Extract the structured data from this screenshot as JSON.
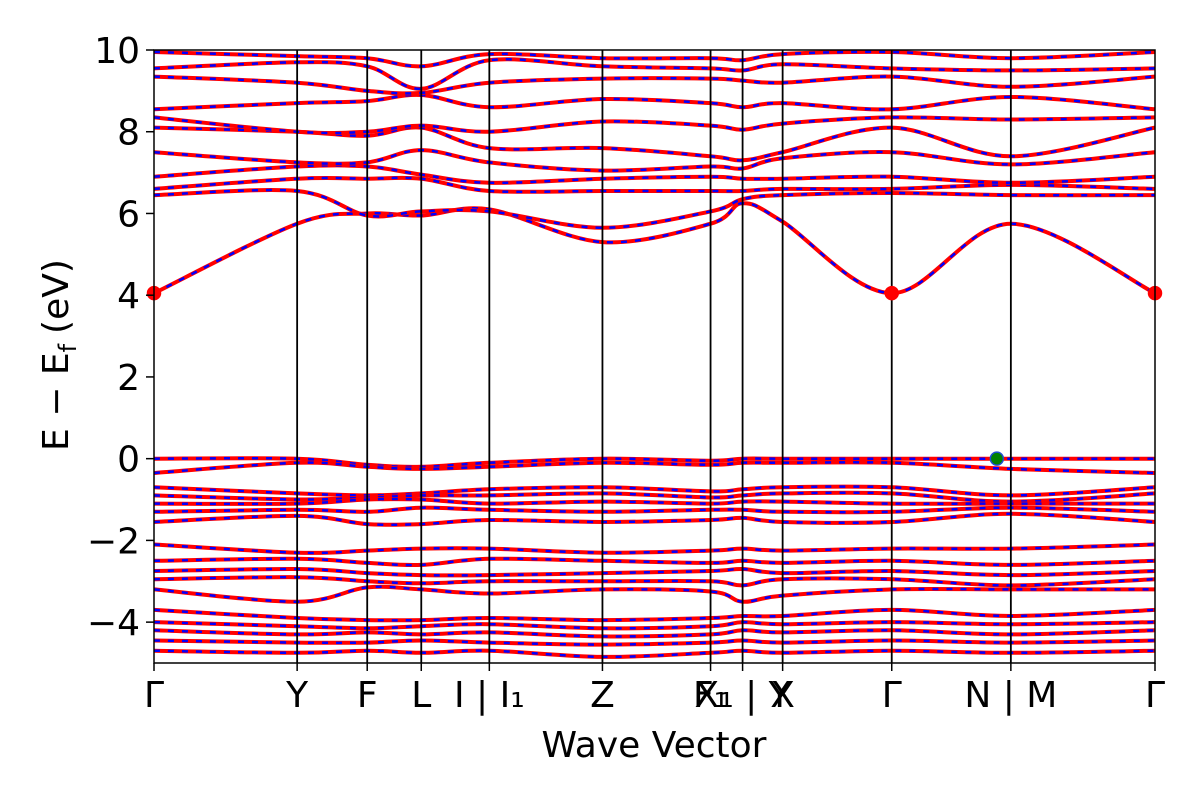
{
  "chart_data": {
    "type": "line",
    "title": "",
    "xlabel": "Wave Vector",
    "ylabel": "E − E",
    "ylabel_subscript": "f",
    "ylabel_unit": "(eV)",
    "ylim": [
      -5,
      10
    ],
    "yticks": [
      -4,
      -2,
      0,
      2,
      4,
      6,
      8,
      10
    ],
    "ytick_labels": [
      "−4",
      "−2",
      "0",
      "2",
      "4",
      "6",
      "8",
      "10"
    ],
    "xlim": [
      0,
      10
    ],
    "kpath": [
      {
        "label": "Γ",
        "x": 0.0
      },
      {
        "label": "Y",
        "x": 1.43
      },
      {
        "label": "F",
        "x": 2.13
      },
      {
        "label": "L",
        "x": 2.67
      },
      {
        "label": "I | I₁",
        "x": 3.35
      },
      {
        "label": "Z",
        "x": 4.48
      },
      {
        "label": "F₁",
        "x": 5.56
      },
      {
        "label": "X₁ | Y",
        "x": 5.88
      },
      {
        "label": "X",
        "x": 6.28
      },
      {
        "label": "Γ",
        "x": 7.37
      },
      {
        "label": "N | M",
        "x": 8.56
      },
      {
        "label": "Γ",
        "x": 10.0
      }
    ],
    "colors": {
      "spin_up": "#ff0000",
      "spin_down": "#0000ff",
      "vbm": "#008000",
      "cbm": "#ff0000",
      "grid": "#000000"
    },
    "series": [
      {
        "name": "",
        "x": [
          0,
          1.43,
          2.13,
          2.67,
          3.35,
          4.48,
          5.56,
          5.88,
          6.28,
          7.37,
          8.56,
          10
        ],
        "values": [
          4.05,
          5.75,
          6.0,
          5.95,
          6.1,
          5.3,
          5.75,
          6.25,
          5.8,
          4.05,
          5.75,
          4.05
        ]
      },
      {
        "name": "",
        "x": [
          0,
          1.43,
          2.13,
          2.67,
          3.35,
          4.48,
          5.56,
          5.88,
          6.28,
          7.37,
          8.56,
          10
        ],
        "values": [
          6.45,
          6.55,
          5.95,
          6.05,
          6.05,
          5.65,
          6.05,
          6.35,
          6.45,
          6.5,
          6.45,
          6.45
        ]
      },
      {
        "name": "",
        "x": [
          0,
          1.43,
          2.13,
          2.67,
          3.35,
          4.48,
          5.56,
          5.88,
          6.28,
          7.37,
          8.56,
          10
        ],
        "values": [
          6.6,
          6.85,
          6.85,
          6.85,
          6.55,
          6.55,
          6.55,
          6.55,
          6.6,
          6.6,
          6.7,
          6.6
        ]
      },
      {
        "name": "",
        "x": [
          0,
          1.43,
          2.13,
          2.67,
          3.35,
          4.48,
          5.56,
          5.88,
          6.28,
          7.37,
          8.56,
          10
        ],
        "values": [
          6.9,
          7.15,
          7.15,
          6.95,
          6.75,
          6.85,
          6.9,
          6.85,
          6.85,
          6.9,
          6.75,
          6.9
        ]
      },
      {
        "name": "",
        "x": [
          0,
          1.43,
          2.13,
          2.67,
          3.35,
          4.48,
          5.56,
          5.88,
          6.28,
          7.37,
          8.56,
          10
        ],
        "values": [
          7.5,
          7.25,
          7.25,
          7.55,
          7.25,
          7.05,
          7.15,
          7.1,
          7.35,
          7.5,
          7.2,
          7.5
        ]
      },
      {
        "name": "",
        "x": [
          0,
          1.43,
          2.13,
          2.67,
          3.35,
          4.48,
          5.56,
          5.88,
          6.28,
          7.37,
          8.56,
          10
        ],
        "values": [
          8.1,
          8.0,
          7.9,
          8.1,
          7.6,
          7.6,
          7.4,
          7.3,
          7.5,
          8.1,
          7.4,
          8.1
        ]
      },
      {
        "name": "",
        "x": [
          0,
          1.43,
          2.13,
          2.67,
          3.35,
          4.48,
          5.56,
          5.88,
          6.28,
          7.37,
          8.56,
          10
        ],
        "values": [
          8.35,
          8.0,
          8.0,
          8.15,
          8.0,
          8.25,
          8.15,
          8.05,
          8.2,
          8.35,
          8.3,
          8.35
        ]
      },
      {
        "name": "",
        "x": [
          0,
          1.43,
          2.13,
          2.67,
          3.35,
          4.48,
          5.56,
          5.88,
          6.28,
          7.37,
          8.56,
          10
        ],
        "values": [
          8.55,
          8.7,
          8.75,
          8.9,
          8.6,
          8.8,
          8.7,
          8.6,
          8.7,
          8.55,
          8.85,
          8.55
        ]
      },
      {
        "name": "",
        "x": [
          0,
          1.43,
          2.13,
          2.67,
          3.35,
          4.48,
          5.56,
          5.88,
          6.28,
          7.37,
          8.56,
          10
        ],
        "values": [
          9.35,
          9.2,
          9.0,
          8.95,
          9.2,
          9.3,
          9.3,
          9.25,
          9.2,
          9.35,
          9.1,
          9.35
        ]
      },
      {
        "name": "",
        "x": [
          0,
          1.43,
          2.13,
          2.67,
          3.35,
          4.48,
          5.56,
          5.88,
          6.28,
          7.37,
          8.56,
          10
        ],
        "values": [
          9.55,
          9.7,
          9.6,
          9.05,
          9.75,
          9.6,
          9.55,
          9.5,
          9.65,
          9.55,
          9.5,
          9.55
        ]
      },
      {
        "name": "",
        "x": [
          0,
          1.43,
          2.13,
          2.67,
          3.35,
          4.48,
          5.56,
          5.88,
          6.28,
          7.37,
          8.56,
          10
        ],
        "values": [
          9.95,
          9.85,
          9.8,
          9.6,
          9.9,
          9.8,
          9.8,
          9.75,
          9.9,
          9.95,
          9.8,
          9.95
        ]
      },
      {
        "name": "",
        "x": [
          0,
          1.43,
          2.13,
          2.67,
          3.35,
          4.48,
          5.56,
          5.88,
          6.28,
          7.37,
          8.56,
          10
        ],
        "values": [
          0.0,
          0.0,
          -0.15,
          -0.2,
          -0.1,
          0.0,
          -0.05,
          0.0,
          0.0,
          0.0,
          0.0,
          0.0
        ]
      },
      {
        "name": "",
        "x": [
          0,
          1.43,
          2.13,
          2.67,
          3.35,
          4.48,
          5.56,
          5.88,
          6.28,
          7.37,
          8.56,
          10
        ],
        "values": [
          -0.35,
          -0.1,
          -0.2,
          -0.25,
          -0.2,
          -0.1,
          -0.15,
          -0.1,
          -0.1,
          -0.1,
          -0.25,
          -0.35
        ]
      },
      {
        "name": "",
        "x": [
          0,
          1.43,
          2.13,
          2.67,
          3.35,
          4.48,
          5.56,
          5.88,
          6.28,
          7.37,
          8.56,
          10
        ],
        "values": [
          -0.7,
          -0.85,
          -0.9,
          -0.85,
          -0.75,
          -0.7,
          -0.8,
          -0.75,
          -0.7,
          -0.7,
          -0.9,
          -0.7
        ]
      },
      {
        "name": "",
        "x": [
          0,
          1.43,
          2.13,
          2.67,
          3.35,
          4.48,
          5.56,
          5.88,
          6.28,
          7.37,
          8.56,
          10
        ],
        "values": [
          -0.9,
          -1.0,
          -0.95,
          -0.9,
          -0.9,
          -0.85,
          -0.95,
          -0.9,
          -0.85,
          -0.85,
          -1.05,
          -0.85
        ]
      },
      {
        "name": "",
        "x": [
          0,
          1.43,
          2.13,
          2.67,
          3.35,
          4.48,
          5.56,
          5.88,
          6.28,
          7.37,
          8.56,
          10
        ],
        "values": [
          -1.1,
          -1.1,
          -1.0,
          -1.0,
          -1.1,
          -1.05,
          -1.1,
          -1.05,
          -1.05,
          -1.1,
          -1.1,
          -1.1
        ]
      },
      {
        "name": "",
        "x": [
          0,
          1.43,
          2.13,
          2.67,
          3.35,
          4.48,
          5.56,
          5.88,
          6.28,
          7.37,
          8.56,
          10
        ],
        "values": [
          -1.3,
          -1.25,
          -1.3,
          -1.2,
          -1.25,
          -1.3,
          -1.25,
          -1.25,
          -1.3,
          -1.3,
          -1.2,
          -1.3
        ]
      },
      {
        "name": "",
        "x": [
          0,
          1.43,
          2.13,
          2.67,
          3.35,
          4.48,
          5.56,
          5.88,
          6.28,
          7.37,
          8.56,
          10
        ],
        "values": [
          -1.55,
          -1.4,
          -1.6,
          -1.6,
          -1.5,
          -1.55,
          -1.5,
          -1.45,
          -1.55,
          -1.55,
          -1.35,
          -1.55
        ]
      },
      {
        "name": "",
        "x": [
          0,
          1.43,
          2.13,
          2.67,
          3.35,
          4.48,
          5.56,
          5.88,
          6.28,
          7.37,
          8.56,
          10
        ],
        "values": [
          -2.1,
          -2.3,
          -2.25,
          -2.2,
          -2.2,
          -2.3,
          -2.25,
          -2.2,
          -2.25,
          -2.2,
          -2.2,
          -2.1
        ]
      },
      {
        "name": "",
        "x": [
          0,
          1.43,
          2.13,
          2.67,
          3.35,
          4.48,
          5.56,
          5.88,
          6.28,
          7.37,
          8.56,
          10
        ],
        "values": [
          -2.5,
          -2.45,
          -2.55,
          -2.6,
          -2.45,
          -2.5,
          -2.55,
          -2.5,
          -2.55,
          -2.5,
          -2.6,
          -2.5
        ]
      },
      {
        "name": "",
        "x": [
          0,
          1.43,
          2.13,
          2.67,
          3.35,
          4.48,
          5.56,
          5.88,
          6.28,
          7.37,
          8.56,
          10
        ],
        "values": [
          -2.75,
          -2.7,
          -2.8,
          -2.85,
          -2.85,
          -2.8,
          -2.75,
          -2.7,
          -2.8,
          -2.75,
          -2.85,
          -2.75
        ]
      },
      {
        "name": "",
        "x": [
          0,
          1.43,
          2.13,
          2.67,
          3.35,
          4.48,
          5.56,
          5.88,
          6.28,
          7.37,
          8.56,
          10
        ],
        "values": [
          -2.95,
          -2.9,
          -3.0,
          -3.05,
          -3.0,
          -3.0,
          -3.0,
          -3.1,
          -2.95,
          -2.95,
          -3.1,
          -2.95
        ]
      },
      {
        "name": "",
        "x": [
          0,
          1.43,
          2.13,
          2.67,
          3.35,
          4.48,
          5.56,
          5.88,
          6.28,
          7.37,
          8.56,
          10
        ],
        "values": [
          -3.2,
          -3.5,
          -3.15,
          -3.2,
          -3.3,
          -3.2,
          -3.25,
          -3.5,
          -3.35,
          -3.2,
          -3.2,
          -3.2
        ]
      },
      {
        "name": "",
        "x": [
          0,
          1.43,
          2.13,
          2.67,
          3.35,
          4.48,
          5.56,
          5.88,
          6.28,
          7.37,
          8.56,
          10
        ],
        "values": [
          -3.7,
          -3.9,
          -3.95,
          -3.95,
          -3.9,
          -3.95,
          -3.9,
          -3.85,
          -3.85,
          -3.7,
          -3.85,
          -3.7
        ]
      },
      {
        "name": "",
        "x": [
          0,
          1.43,
          2.13,
          2.67,
          3.35,
          4.48,
          5.56,
          5.88,
          6.28,
          7.37,
          8.56,
          10
        ],
        "values": [
          -4.0,
          -4.1,
          -4.15,
          -4.1,
          -4.05,
          -4.15,
          -4.1,
          -4.0,
          -4.05,
          -4.0,
          -4.05,
          -4.0
        ]
      },
      {
        "name": "",
        "x": [
          0,
          1.43,
          2.13,
          2.67,
          3.35,
          4.48,
          5.56,
          5.88,
          6.28,
          7.37,
          8.56,
          10
        ],
        "values": [
          -4.2,
          -4.3,
          -4.25,
          -4.3,
          -4.25,
          -4.35,
          -4.3,
          -4.2,
          -4.25,
          -4.2,
          -4.3,
          -4.2
        ]
      },
      {
        "name": "",
        "x": [
          0,
          1.43,
          2.13,
          2.67,
          3.35,
          4.48,
          5.56,
          5.88,
          6.28,
          7.37,
          8.56,
          10
        ],
        "values": [
          -4.45,
          -4.5,
          -4.5,
          -4.45,
          -4.5,
          -4.55,
          -4.5,
          -4.45,
          -4.5,
          -4.45,
          -4.5,
          -4.45
        ]
      },
      {
        "name": "",
        "x": [
          0,
          1.43,
          2.13,
          2.67,
          3.35,
          4.48,
          5.56,
          5.88,
          6.28,
          7.37,
          8.56,
          10
        ],
        "values": [
          -4.7,
          -4.75,
          -4.7,
          -4.75,
          -4.7,
          -4.85,
          -4.75,
          -4.7,
          -4.75,
          -4.7,
          -4.75,
          -4.7
        ]
      }
    ],
    "markers": [
      {
        "type": "cbm",
        "x": 0.0,
        "y": 4.05
      },
      {
        "type": "cbm",
        "x": 7.37,
        "y": 4.05
      },
      {
        "type": "cbm",
        "x": 10.0,
        "y": 4.05
      },
      {
        "type": "vbm",
        "x": 8.42,
        "y": 0.0
      }
    ]
  }
}
